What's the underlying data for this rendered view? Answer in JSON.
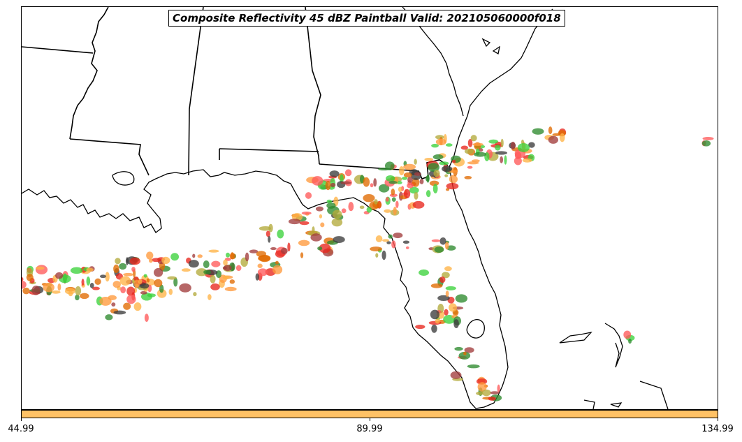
{
  "title": "Composite Reflectivity 45 dBZ Paintball Valid: 202105060000f018",
  "colorbar": {
    "color": "#ffc266",
    "ticks": [
      "44.99",
      "89.99",
      "134.99"
    ]
  },
  "palette": {
    "red": "#e8261e",
    "salmon": "#ff5a5a",
    "dark_red": "#a23c3c",
    "orange": "#ff9a3c",
    "light_orange": "#ffb347",
    "green": "#2e8b2e",
    "bright_green": "#3cd23c",
    "olive": "#b4aa3c",
    "dark_gray": "#3c3c3c",
    "burnt_orange": "#e06a00"
  }
}
